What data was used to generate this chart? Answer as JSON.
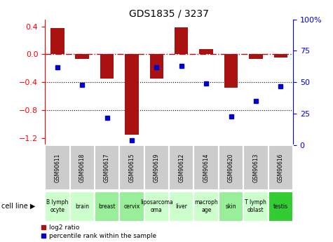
{
  "title": "GDS1835 / 3237",
  "gsm_labels": [
    "GSM90611",
    "GSM90618",
    "GSM90617",
    "GSM90615",
    "GSM90619",
    "GSM90612",
    "GSM90614",
    "GSM90620",
    "GSM90613",
    "GSM90616"
  ],
  "cell_lines": [
    "B lymph\nocyte",
    "brain",
    "breast",
    "cervix",
    "liposarcoma",
    "liver",
    "macrophage",
    "skin",
    "T lymph\noblast",
    "testis"
  ],
  "cell_line_display": [
    "B lymph\nocyte",
    "brain",
    "breast",
    "cervix",
    "liposarcoma\n(liposarcoma)",
    "liver",
    "macrophage",
    "skin",
    "T lymph\noblast",
    "testis"
  ],
  "log2_ratios": [
    0.38,
    -0.07,
    -0.35,
    -1.15,
    -0.35,
    0.39,
    0.07,
    -0.48,
    -0.07,
    -0.05
  ],
  "pct_ranks": [
    62,
    48,
    22,
    4,
    62,
    63,
    49,
    23,
    35,
    47
  ],
  "ylim_left": [
    -1.3,
    0.5
  ],
  "ylim_right": [
    0,
    100
  ],
  "yticks_left": [
    0.4,
    0.0,
    -0.4,
    -0.8,
    -1.2
  ],
  "yticks_right": [
    100,
    75,
    50,
    25,
    0
  ],
  "bar_color": "#aa1111",
  "dot_color": "#0000cc",
  "bar_width": 0.55,
  "dotted_lines": [
    -0.4,
    -0.8
  ],
  "gsm_bg": "#cccccc",
  "cell_bg_colors": [
    "#ccffcc",
    "#ccffcc",
    "#99ee99",
    "#99ee99",
    "#ccffcc",
    "#ccffcc",
    "#ccffcc",
    "#99ee99",
    "#ccffcc",
    "#33cc33"
  ],
  "cell_line_texts": [
    "B lymph\nocyte",
    "brain",
    "breast",
    "cervix",
    "liposarcoma\noma",
    "liver",
    "macroph\nage",
    "skin",
    "T lymph\noblast",
    "testis"
  ]
}
